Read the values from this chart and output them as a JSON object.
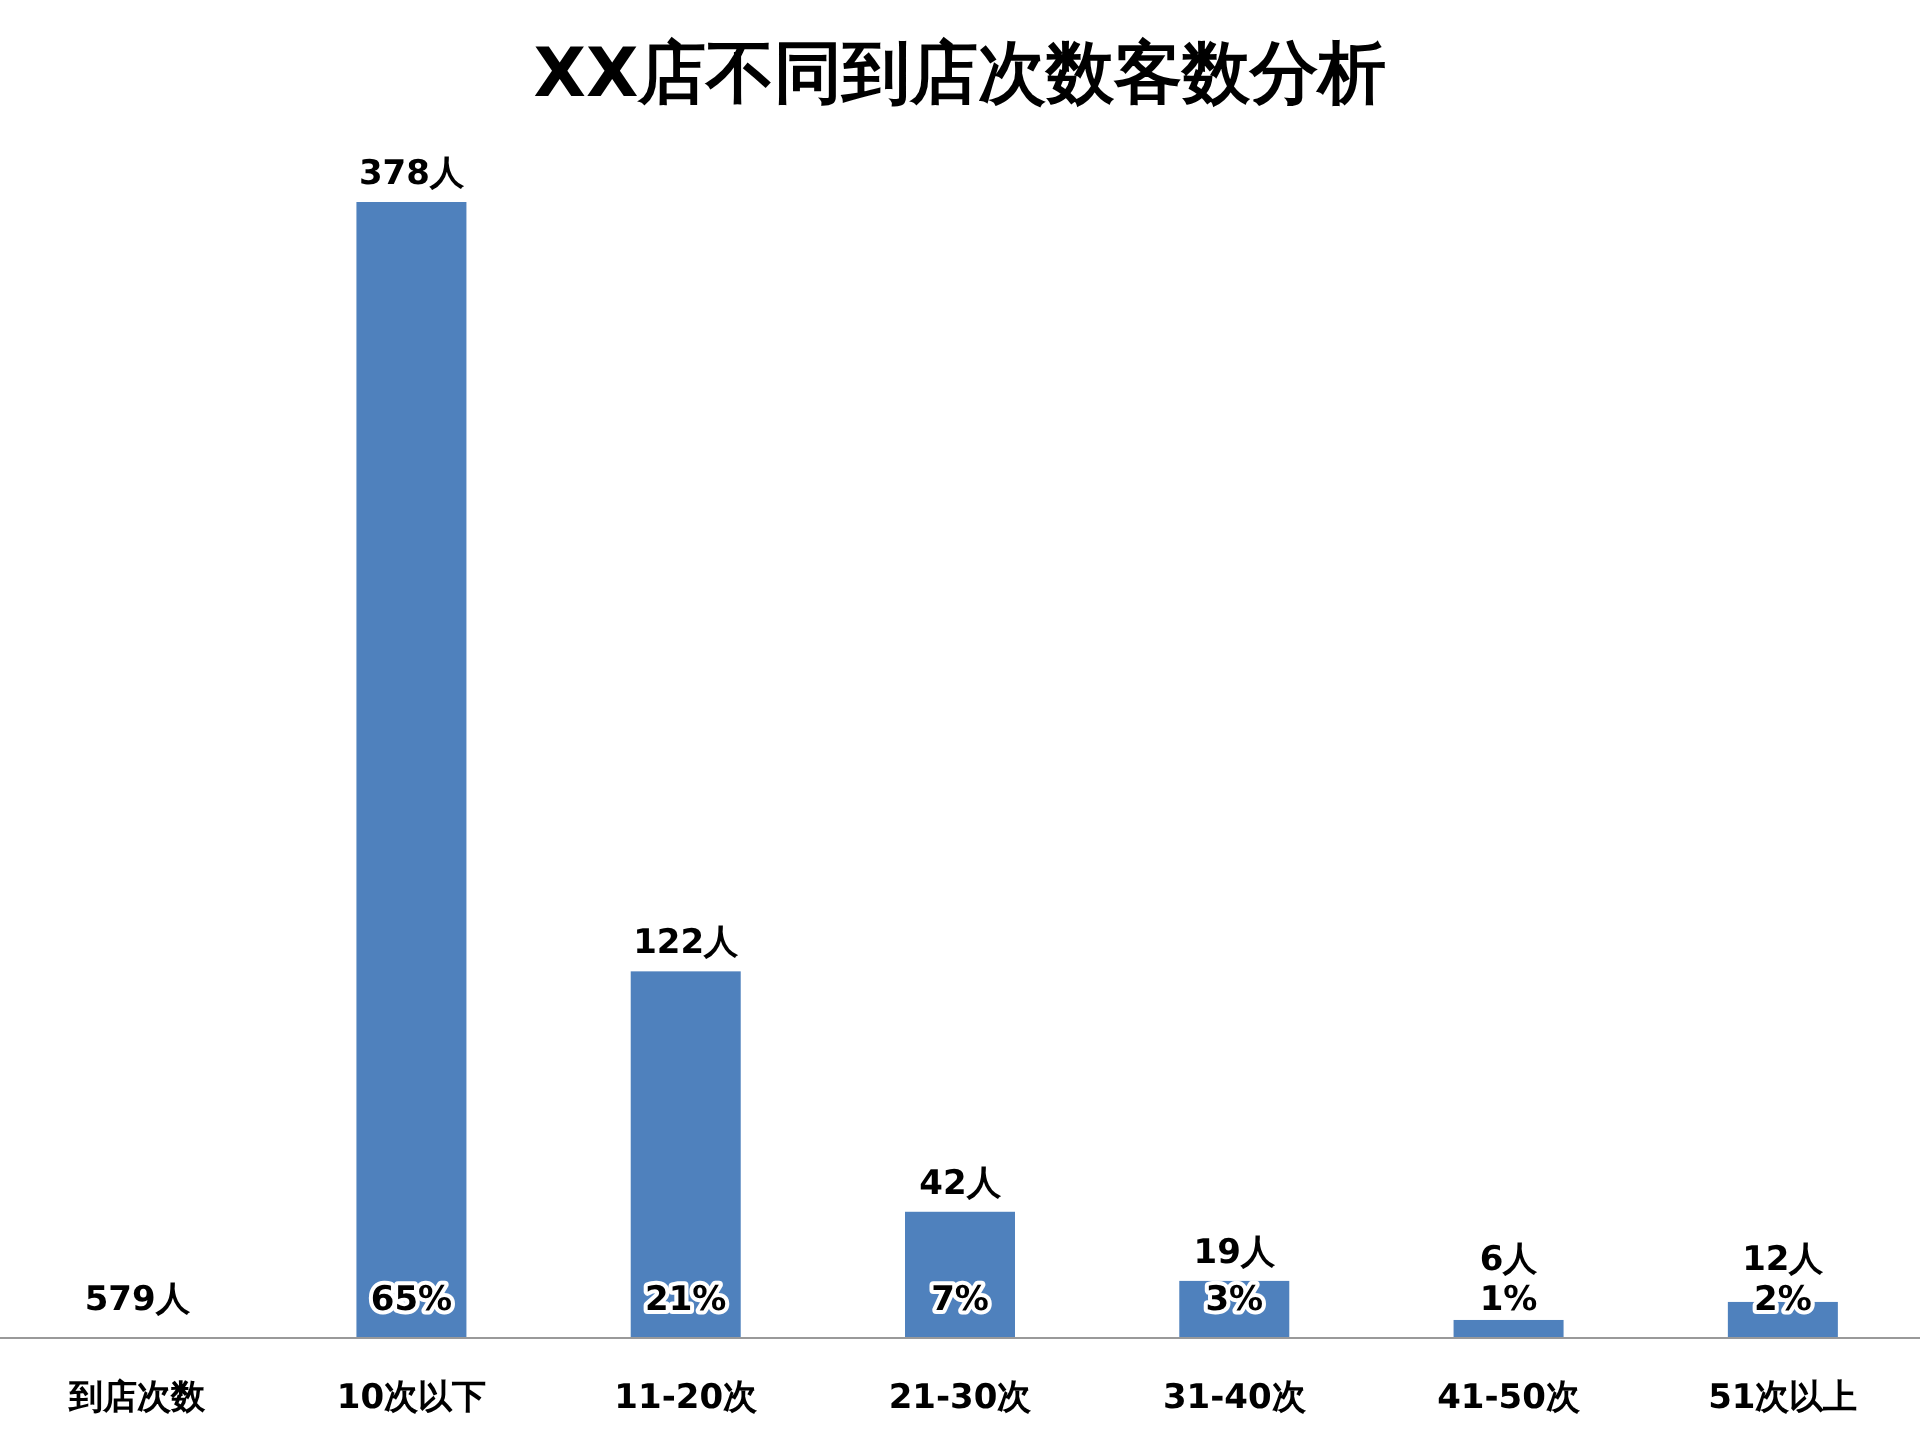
{
  "chart_data": {
    "type": "bar",
    "title": "XX店不同到店次数客数分析",
    "categories": [
      "到店次数",
      "10次以下",
      "11-20次",
      "21-30次",
      "31-40次",
      "41-50次",
      "51次以上"
    ],
    "series": [
      {
        "color": "#4f81bd",
        "values": [
          null,
          378,
          122,
          42,
          19,
          6,
          12
        ],
        "value_labels": [
          null,
          "378人",
          "122人",
          "42人",
          "19人",
          "6人",
          "12人"
        ]
      }
    ],
    "annotations": [
      "579人",
      "65%",
      "21%",
      "7%",
      "3%",
      "1%",
      "2%"
    ]
  }
}
